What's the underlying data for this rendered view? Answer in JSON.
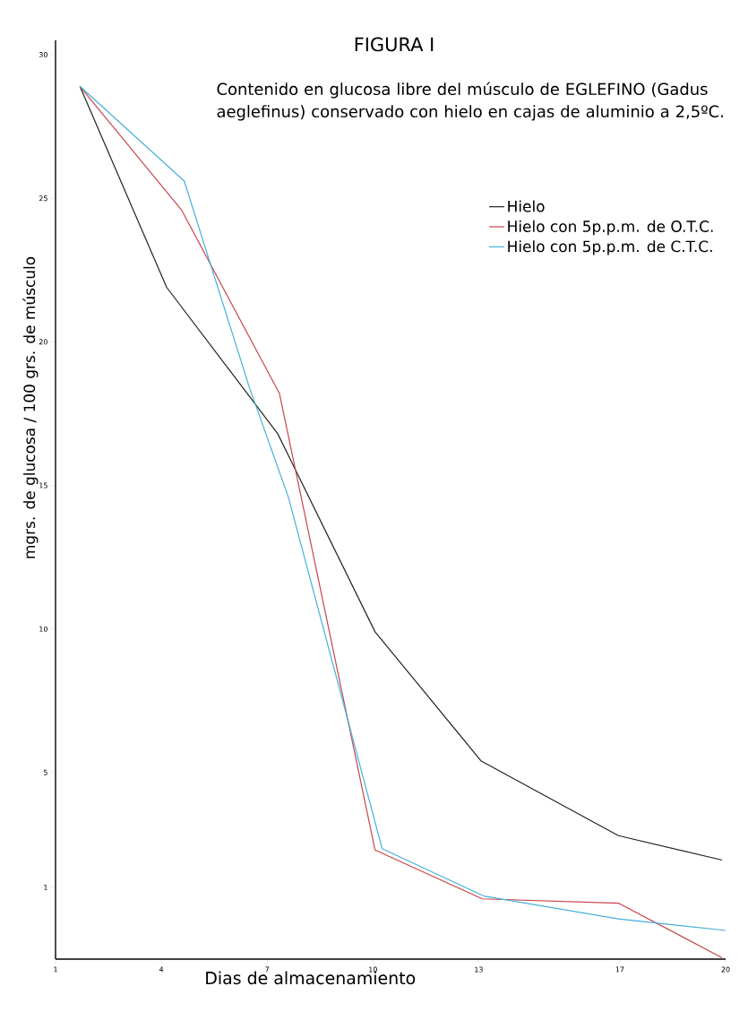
{
  "chart_data": {
    "type": "line",
    "title": "FIGURA I",
    "subtitle": "Contenido en glucosa libre del músculo de EGLEFINO (Gadus aeglefinus) conservado con hielo en cajas de aluminio a 2,5ºC.",
    "xlabel": "Dias de almacenamiento",
    "ylabel": "mgrs. de glucosa / 100 grs. de músculo",
    "series": [
      {
        "name": "Hielo",
        "color": "#222222",
        "x": [
          1.69,
          4.15,
          7.3,
          10.06,
          13.07,
          16.96,
          19.9
        ],
        "values": [
          28.9,
          21.9,
          16.8,
          9.9,
          5.4,
          2.8,
          1.95
        ]
      },
      {
        "name": "Hielo con 5p.p.m. de O.T.C.",
        "color": "#c9444a",
        "x": [
          1.69,
          4.57,
          7.35,
          10.06,
          13.1,
          16.96,
          19.9
        ],
        "values": [
          28.9,
          24.6,
          18.2,
          2.3,
          0.6,
          0.45,
          -1.45
        ]
      },
      {
        "name": "Hielo con 5p.p.m. de C.T.C.",
        "color": "#45b0d8",
        "x": [
          1.69,
          4.65,
          6.5,
          7.6,
          10.26,
          13.14,
          16.96,
          20.0
        ],
        "values": [
          28.9,
          25.6,
          18.4,
          14.6,
          2.35,
          0.7,
          -0.1,
          -0.5
        ]
      }
    ],
    "xlim": [
      1,
      20
    ],
    "ylim": [
      -1.5,
      30.5
    ],
    "xticks": [
      1,
      4,
      7,
      10,
      13,
      17,
      20
    ],
    "yticks": [
      1,
      5,
      10,
      15,
      20,
      25,
      30
    ],
    "legend": "top right",
    "grid": false,
    "marker": "none",
    "line_style": "solid"
  }
}
